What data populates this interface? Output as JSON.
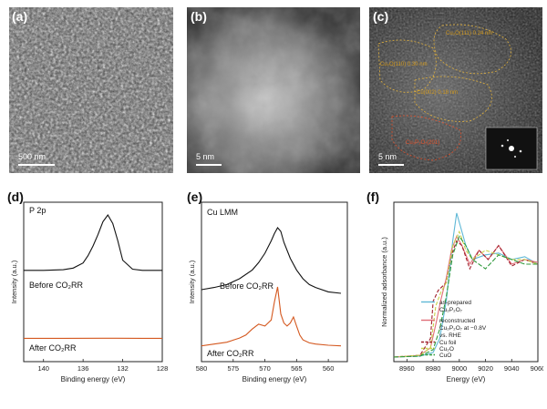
{
  "panels": {
    "a": {
      "label": "(a)",
      "scale": "500 nm"
    },
    "b": {
      "label": "(b)",
      "scale": "5 nm"
    },
    "c": {
      "label": "(c)",
      "scale": "5 nm",
      "annotations": [
        "Cu₃O(111) 0.24 nm",
        "Cu₂O(110) 0.30 nm",
        "Cu(002) 0.18 nm",
        "Cu₃P₂O₇(201)"
      ]
    },
    "d": {
      "label": "(d)",
      "title": "P 2p",
      "ylabel": "Intensity (a.u.)",
      "xlabel": "Binding energy (eV)",
      "ticks": [
        "140",
        "136",
        "132",
        "128"
      ],
      "before": "Before CO₂RR",
      "after": "After CO₂RR"
    },
    "e": {
      "label": "(e)",
      "title": "Cu LMM",
      "ylabel": "Intensity (a.u.)",
      "xlabel": "Binding energy (eV)",
      "ticks": [
        "580",
        "575",
        "570",
        "565",
        "560"
      ],
      "before": "Before CO₂RR",
      "after": "After CO₂RR"
    },
    "f": {
      "label": "(f)",
      "ylabel": "Normalized adsorbance (a.u.)",
      "xlabel": "Energy (eV)",
      "ticks": [
        "8960",
        "8980",
        "9000",
        "9020",
        "9040",
        "9060"
      ],
      "legend": [
        "as-prepared",
        "Cu₂P₂O₇",
        "reconstructed",
        "Cu₂P₂O₇ at −0.8V",
        "vs. RHE",
        "Cu foil",
        "Cu₂O",
        "CuO"
      ]
    }
  },
  "chart_data": [
    {
      "type": "line",
      "title": "P 2p",
      "xlabel": "Binding energy (eV)",
      "ylabel": "Intensity (a.u.)",
      "xlim": [
        142,
        128
      ],
      "x_reversed": true,
      "series": [
        {
          "name": "Before CO₂RR",
          "color": "#111111",
          "x": [
            142,
            140,
            138,
            137,
            136,
            135.5,
            135,
            134.5,
            134,
            133.5,
            133,
            132.5,
            132,
            131,
            130,
            128
          ],
          "y": [
            0.02,
            0.02,
            0.03,
            0.06,
            0.15,
            0.28,
            0.45,
            0.65,
            0.88,
            1.0,
            0.85,
            0.55,
            0.2,
            0.04,
            0.02,
            0.02
          ]
        },
        {
          "name": "After CO₂RR",
          "color": "#d4581f",
          "x": [
            142,
            138,
            134,
            130,
            128
          ],
          "y": [
            0.02,
            0.02,
            0.025,
            0.02,
            0.02
          ]
        }
      ]
    },
    {
      "type": "line",
      "title": "Cu LMM",
      "xlabel": "Binding energy (eV)",
      "ylabel": "Intensity (a.u.)",
      "xlim": [
        580,
        557
      ],
      "x_reversed": true,
      "series": [
        {
          "name": "Before CO₂RR",
          "color": "#111111",
          "x": [
            580,
            578,
            576,
            574,
            572,
            571,
            570,
            569,
            568.5,
            568,
            567.5,
            567,
            566,
            565,
            564,
            563,
            562,
            560,
            558
          ],
          "y": [
            0.05,
            0.08,
            0.12,
            0.2,
            0.32,
            0.42,
            0.55,
            0.72,
            0.82,
            0.9,
            0.85,
            0.7,
            0.48,
            0.32,
            0.2,
            0.12,
            0.08,
            0.02,
            0.0
          ]
        },
        {
          "name": "After CO₂RR",
          "color": "#d4581f",
          "x": [
            580,
            578,
            576,
            574,
            573,
            572,
            571,
            570,
            569.5,
            569,
            568.5,
            568,
            567.5,
            567,
            566.5,
            566,
            565.5,
            565,
            564.5,
            564,
            563,
            562,
            560,
            558
          ],
          "y": [
            0.02,
            0.05,
            0.08,
            0.15,
            0.2,
            0.3,
            0.38,
            0.35,
            0.4,
            0.45,
            0.75,
            1.0,
            0.55,
            0.4,
            0.35,
            0.4,
            0.5,
            0.35,
            0.2,
            0.12,
            0.07,
            0.05,
            0.03,
            0.02
          ]
        }
      ]
    },
    {
      "type": "line",
      "title": "",
      "xlabel": "Energy (eV)",
      "ylabel": "Normalized adsorbance (a.u.)",
      "xlim": [
        8950,
        9060
      ],
      "series": [
        {
          "name": "as-prepared Cu₂P₂O₇",
          "color": "#5fb8d6",
          "dash": "",
          "x": [
            8950,
            8970,
            8980,
            8985,
            8990,
            8995,
            8998,
            9000,
            9005,
            9010,
            9020,
            9030,
            9040,
            9050,
            9060
          ],
          "y": [
            0.0,
            0.01,
            0.05,
            0.2,
            0.6,
            1.25,
            1.55,
            1.45,
            1.2,
            1.05,
            1.1,
            1.12,
            1.05,
            1.08,
            1.0
          ]
        },
        {
          "name": "reconstructed Cu₂P₂O₇ at −0.8V vs. RHE",
          "color": "#e06e78",
          "dash": "",
          "x": [
            8950,
            8970,
            8978,
            8982,
            8986,
            8990,
            8994,
            8998,
            9002,
            9008,
            9015,
            9022,
            9030,
            9040,
            9050,
            9060
          ],
          "y": [
            0.0,
            0.02,
            0.1,
            0.35,
            0.62,
            0.85,
            1.15,
            1.3,
            1.2,
            1.0,
            1.15,
            1.05,
            1.2,
            1.0,
            1.05,
            1.02
          ]
        },
        {
          "name": "Cu foil",
          "color": "#a0202c",
          "dash": "4,2",
          "x": [
            8950,
            8970,
            8978,
            8980,
            8984,
            8990,
            8994,
            8998,
            9002,
            9008,
            9015,
            9022,
            9030,
            9040,
            9050,
            9060
          ],
          "y": [
            0.0,
            0.02,
            0.2,
            0.6,
            0.72,
            0.8,
            1.1,
            1.25,
            1.2,
            0.95,
            1.15,
            1.05,
            1.2,
            0.98,
            1.05,
            1.0
          ]
        },
        {
          "name": "Cu₂O",
          "color": "#c7d24a",
          "dash": "4,2",
          "x": [
            8950,
            8970,
            8978,
            8982,
            8986,
            8990,
            8995,
            9000,
            9005,
            9010,
            9020,
            9030,
            9040,
            9050,
            9060
          ],
          "y": [
            0.0,
            0.02,
            0.1,
            0.55,
            0.7,
            0.8,
            1.2,
            1.35,
            1.15,
            1.05,
            1.15,
            1.1,
            1.05,
            1.05,
            1.0
          ]
        },
        {
          "name": "CuO",
          "color": "#2f9a3c",
          "dash": "5,2",
          "x": [
            8950,
            8970,
            8980,
            8985,
            8990,
            8995,
            9000,
            9005,
            9010,
            9020,
            9030,
            9040,
            9050,
            9060
          ],
          "y": [
            0.0,
            0.01,
            0.08,
            0.3,
            0.65,
            1.1,
            1.3,
            1.2,
            1.05,
            0.95,
            1.1,
            1.05,
            1.0,
            1.0
          ]
        }
      ]
    }
  ]
}
